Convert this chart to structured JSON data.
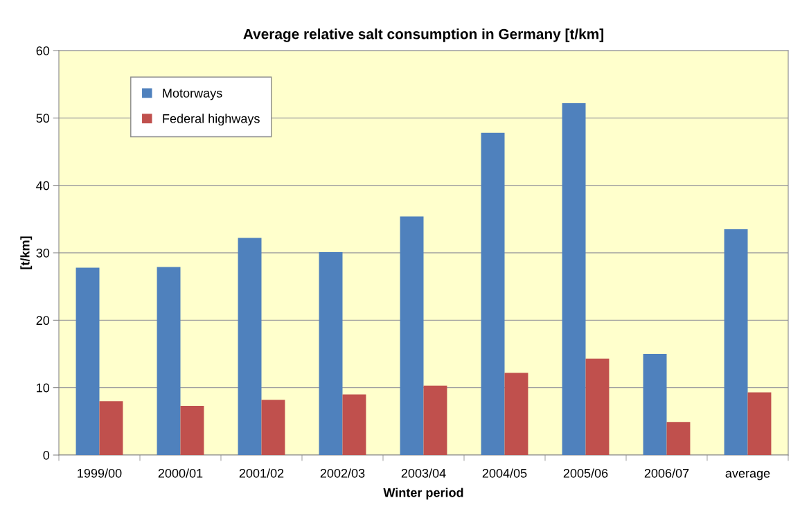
{
  "chart_data": {
    "type": "bar",
    "title": "Average relative salt consumption in Germany [t/km]",
    "xlabel": "Winter period",
    "ylabel": "[t/km]",
    "categories": [
      "1999/00",
      "2000/01",
      "2001/02",
      "2002/03",
      "2003/04",
      "2004/05",
      "2005/06",
      "2006/07",
      "average"
    ],
    "series": [
      {
        "name": "Motorways",
        "color": "#4f81bd",
        "values": [
          27.8,
          27.9,
          32.2,
          30.1,
          35.4,
          47.8,
          52.2,
          15.0,
          33.5
        ]
      },
      {
        "name": "Federal highways",
        "color": "#c0504d",
        "values": [
          8.0,
          7.3,
          8.2,
          9.0,
          10.3,
          12.2,
          14.3,
          4.9,
          9.3
        ]
      }
    ],
    "ylim": [
      0,
      60
    ],
    "yticks": [
      0,
      10,
      20,
      30,
      40,
      50,
      60
    ],
    "grid": "y",
    "legend": "top left"
  }
}
